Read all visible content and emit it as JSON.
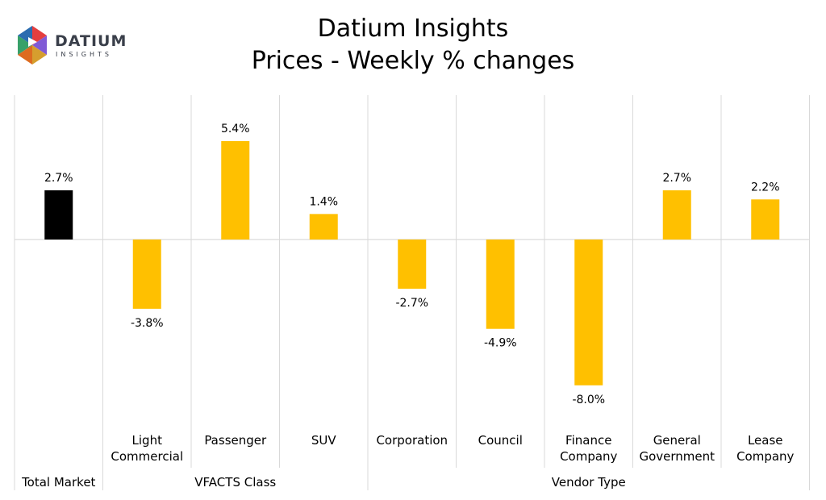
{
  "logo": {
    "word": "DATIUM",
    "sub": "INSIGHTS"
  },
  "colors": {
    "total_bar": "#000000",
    "segment_bar": "#FFC000",
    "grid": "#d9d9d9"
  },
  "chart_data": {
    "type": "bar",
    "title": [
      "Datium Insights",
      "Prices - Weekly % changes"
    ],
    "xlabel": "",
    "ylabel": "",
    "ylim": [
      -10.0,
      8.0
    ],
    "grid": "vertical separators between categories",
    "legend": "none",
    "value_format": "percent with one decimal",
    "categories": [
      [
        "Total Market"
      ],
      [
        "Light",
        "Commercial"
      ],
      [
        "Passenger"
      ],
      [
        "SUV"
      ],
      [
        "Corporation"
      ],
      [
        "Council"
      ],
      [
        "Finance",
        "Company"
      ],
      [
        "General",
        "Government"
      ],
      [
        "Lease",
        "Company"
      ]
    ],
    "values": [
      2.7,
      -3.8,
      5.4,
      1.4,
      -2.7,
      -4.9,
      -8.0,
      2.7,
      2.2
    ],
    "value_labels": [
      "2.7%",
      "-3.8%",
      "5.4%",
      "1.4%",
      "-2.7%",
      "-4.9%",
      "-8.0%",
      "2.7%",
      "2.2%"
    ],
    "bar_color_keys": [
      "total_bar",
      "segment_bar",
      "segment_bar",
      "segment_bar",
      "segment_bar",
      "segment_bar",
      "segment_bar",
      "segment_bar",
      "segment_bar"
    ],
    "groups": [
      {
        "label": "",
        "start": 0,
        "end": 0
      },
      {
        "label": "VFACTS Class",
        "start": 1,
        "end": 3
      },
      {
        "label": "Vendor Type",
        "start": 4,
        "end": 8
      }
    ]
  }
}
